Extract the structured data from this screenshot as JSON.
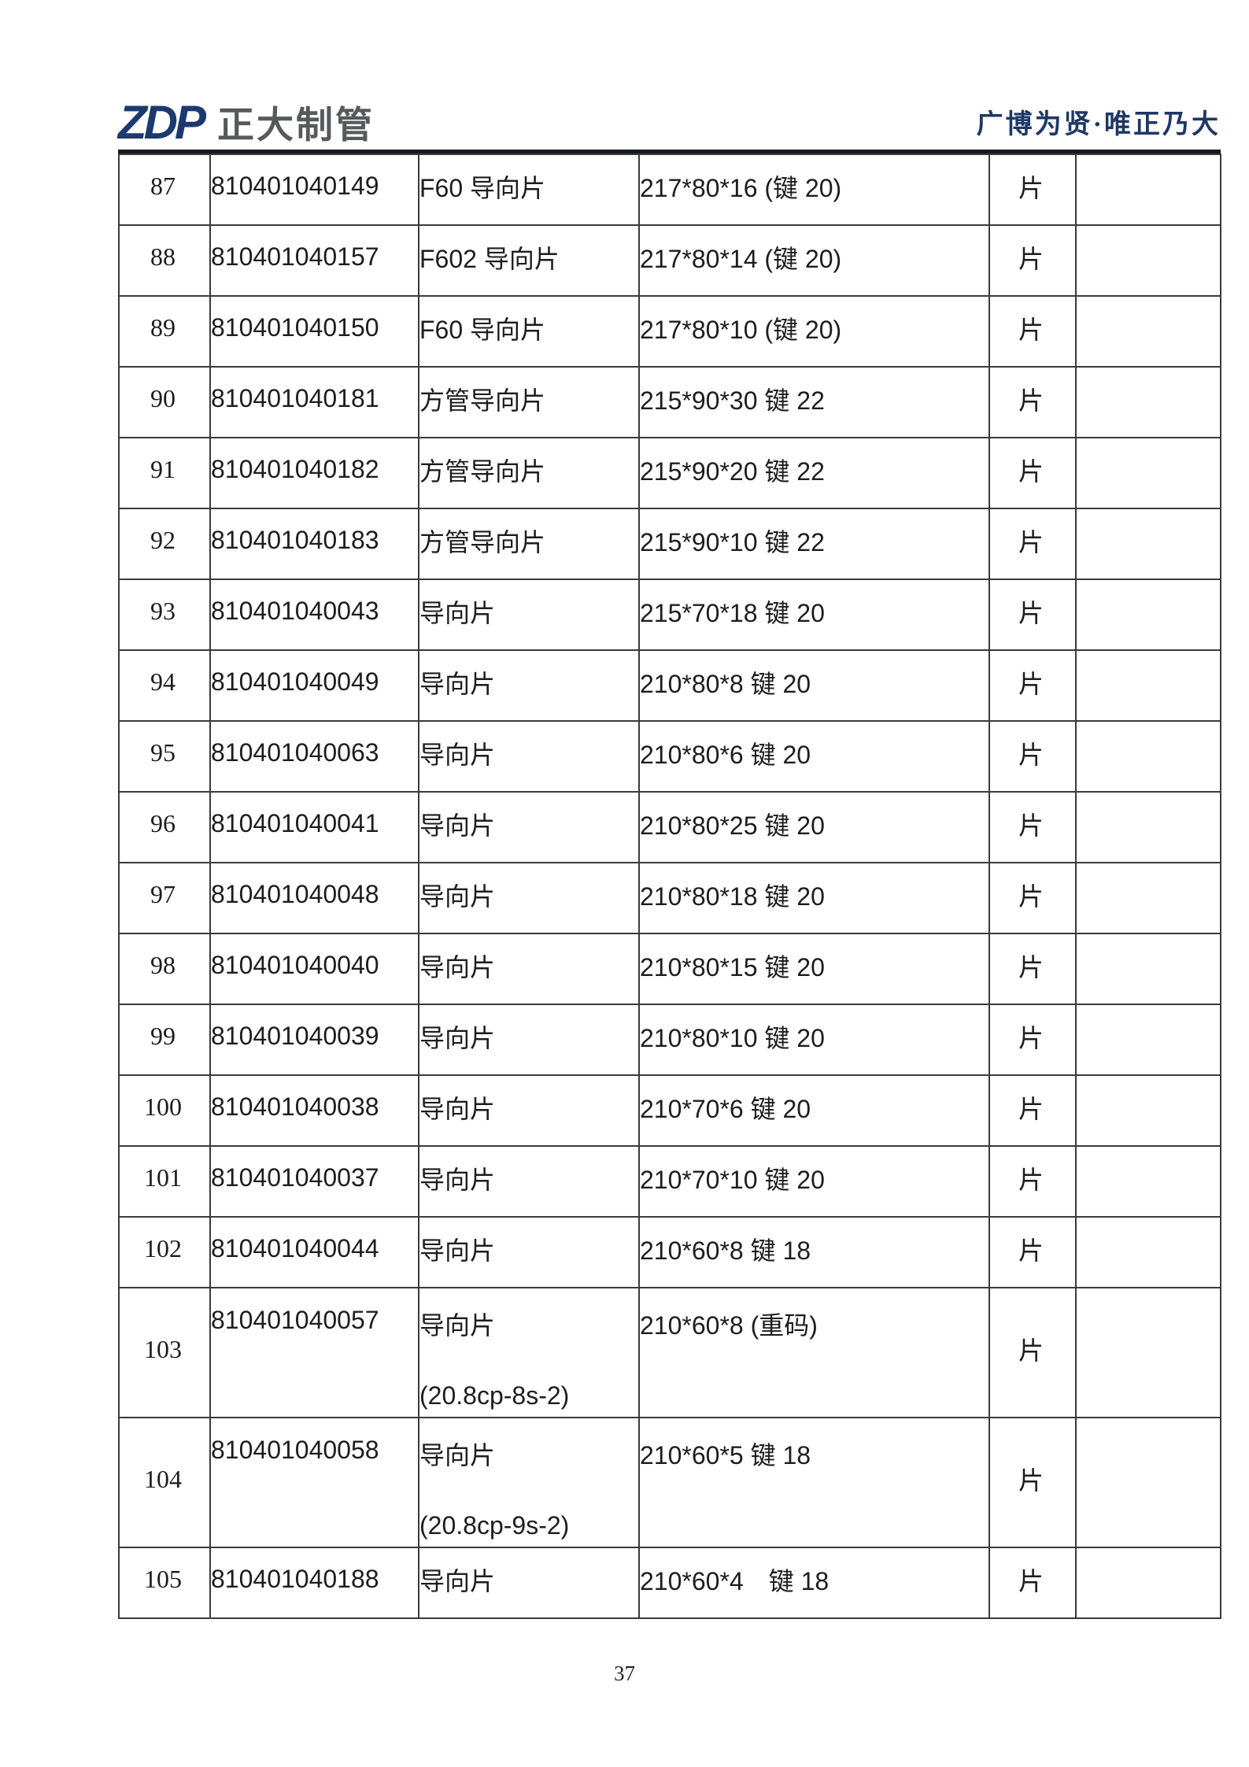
{
  "header": {
    "logo_zdp": "ZDP",
    "logo_company": "正大制管",
    "slogan": "广博为贤·唯正乃大"
  },
  "colors": {
    "brand_navy": "#1c3a6e",
    "logo_gray": "#58595b",
    "slogan_navy": "#1f3864",
    "table_border": "#3a3a3a",
    "text": "#1d1d1d"
  },
  "footer": {
    "page_number": "37"
  },
  "table": {
    "rows": [
      {
        "no": "87",
        "code": "810401040149",
        "name": "F60 导向片",
        "name_line2": "",
        "spec": "217*80*16 (键 20)",
        "unit": "片",
        "note": "",
        "tall": false
      },
      {
        "no": "88",
        "code": "810401040157",
        "name": "F602 导向片",
        "name_line2": "",
        "spec": "217*80*14 (键 20)",
        "unit": "片",
        "note": "",
        "tall": false
      },
      {
        "no": "89",
        "code": "810401040150",
        "name": "F60 导向片",
        "name_line2": "",
        "spec": "217*80*10 (键 20)",
        "unit": "片",
        "note": "",
        "tall": false
      },
      {
        "no": "90",
        "code": "810401040181",
        "name": "方管导向片",
        "name_line2": "",
        "spec": "215*90*30 键 22",
        "unit": "片",
        "note": "",
        "tall": false
      },
      {
        "no": "91",
        "code": "810401040182",
        "name": "方管导向片",
        "name_line2": "",
        "spec": "215*90*20 键 22",
        "unit": "片",
        "note": "",
        "tall": false
      },
      {
        "no": "92",
        "code": "810401040183",
        "name": "方管导向片",
        "name_line2": "",
        "spec": "215*90*10 键 22",
        "unit": "片",
        "note": "",
        "tall": false
      },
      {
        "no": "93",
        "code": "810401040043",
        "name": "导向片",
        "name_line2": "",
        "spec": "215*70*18 键 20",
        "unit": "片",
        "note": "",
        "tall": false
      },
      {
        "no": "94",
        "code": "810401040049",
        "name": "导向片",
        "name_line2": "",
        "spec": "210*80*8 键 20",
        "unit": "片",
        "note": "",
        "tall": false
      },
      {
        "no": "95",
        "code": "810401040063",
        "name": "导向片",
        "name_line2": "",
        "spec": "210*80*6 键 20",
        "unit": "片",
        "note": "",
        "tall": false
      },
      {
        "no": "96",
        "code": "810401040041",
        "name": "导向片",
        "name_line2": "",
        "spec": "210*80*25 键 20",
        "unit": "片",
        "note": "",
        "tall": false
      },
      {
        "no": "97",
        "code": "810401040048",
        "name": "导向片",
        "name_line2": "",
        "spec": "210*80*18 键 20",
        "unit": "片",
        "note": "",
        "tall": false
      },
      {
        "no": "98",
        "code": "810401040040",
        "name": "导向片",
        "name_line2": "",
        "spec": "210*80*15 键 20",
        "unit": "片",
        "note": "",
        "tall": false
      },
      {
        "no": "99",
        "code": "810401040039",
        "name": "导向片",
        "name_line2": "",
        "spec": "210*80*10 键 20",
        "unit": "片",
        "note": "",
        "tall": false
      },
      {
        "no": "100",
        "code": "810401040038",
        "name": "导向片",
        "name_line2": "",
        "spec": "210*70*6 键 20",
        "unit": "片",
        "note": "",
        "tall": false
      },
      {
        "no": "101",
        "code": "810401040037",
        "name": "导向片",
        "name_line2": "",
        "spec": "210*70*10 键 20",
        "unit": "片",
        "note": "",
        "tall": false
      },
      {
        "no": "102",
        "code": "810401040044",
        "name": "导向片",
        "name_line2": "",
        "spec": "210*60*8 键 18",
        "unit": "片",
        "note": "",
        "tall": false
      },
      {
        "no": "103",
        "code": "810401040057",
        "name": "导向片",
        "name_line2": "(20.8cp-8s-2)",
        "spec": "210*60*8 (重码)",
        "unit": "片",
        "note": "",
        "tall": true
      },
      {
        "no": "104",
        "code": "810401040058",
        "name": "导向片",
        "name_line2": "(20.8cp-9s-2)",
        "spec": "210*60*5 键 18",
        "unit": "片",
        "note": "",
        "tall": true
      },
      {
        "no": "105",
        "code": "810401040188",
        "name": "导向片",
        "name_line2": "",
        "spec": "210*60*4　键 18",
        "unit": "片",
        "note": "",
        "tall": false
      }
    ]
  }
}
